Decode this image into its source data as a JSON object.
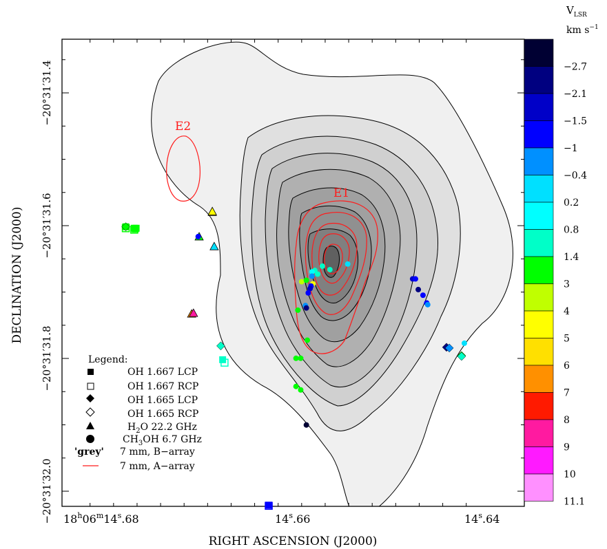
{
  "chart_data": {
    "type": "scatter",
    "xlabel": "RIGHT ASCENSION (J2000)",
    "ylabel": "DECLINATION (J2000)",
    "x_ticks": [
      {
        "h": "18",
        "m": "06",
        "s": "14.68",
        "label": "18h06m14s.68"
      },
      {
        "s": "14.66",
        "label": "14s.66"
      },
      {
        "s": "14.64",
        "label": "14s.64"
      }
    ],
    "y_ticks": [
      {
        "value": "−20°31′31.4",
        "deg": "−20",
        "min": "31",
        "sec": "31",
        "frac": "4"
      },
      {
        "value": "−20°31′31.6",
        "deg": "−20",
        "min": "31",
        "sec": "31",
        "frac": "6"
      },
      {
        "value": "−20°31′31.8",
        "deg": "−20",
        "min": "31",
        "sec": "31",
        "frac": "8"
      },
      {
        "value": "−20°31′32.0",
        "deg": "−20",
        "min": "31",
        "sec": "32",
        "frac": "0"
      }
    ],
    "colorbar": {
      "title_main": "V",
      "title_sub": "LSR",
      "unit_main": "km s",
      "unit_sup": "−1",
      "labels": [
        "−2.7",
        "−2.1",
        "−1.5",
        "−1",
        "−0.4",
        "0.2",
        "0.8",
        "1.4",
        "3",
        "4",
        "5",
        "6",
        "7",
        "8",
        "9",
        "10",
        "11.1"
      ],
      "colors": [
        "#000033",
        "#000080",
        "#0000c8",
        "#0000ff",
        "#0090ff",
        "#00e0ff",
        "#00ffff",
        "#00ffc8",
        "#00ff00",
        "#c0ff00",
        "#ffff00",
        "#ffe000",
        "#ff9000",
        "#ff1a00",
        "#ff1aa0",
        "#ff1aff",
        "#ff90ff"
      ]
    },
    "region_labels": [
      "E1",
      "E2"
    ],
    "legend": {
      "title": "Legend:",
      "entries": [
        {
          "symbol": "filled-square",
          "text": "OH 1.667 LCP"
        },
        {
          "symbol": "open-square",
          "text": "OH 1.667 RCP"
        },
        {
          "symbol": "filled-diamond",
          "text": "OH 1.665 LCP"
        },
        {
          "symbol": "open-diamond",
          "text": "OH 1.665 RCP"
        },
        {
          "symbol": "triangle",
          "text_main": "H",
          "text_sub": "2",
          "text_rest": "O 22.2 GHz"
        },
        {
          "symbol": "circle",
          "text_main": "CH",
          "text_sub": "3",
          "text_rest": "OH 6.7 GHz"
        },
        {
          "symbol": "grey",
          "grey_label": "'grey'",
          "text": "7 mm, B−array"
        },
        {
          "symbol": "red-line",
          "text": "7 mm, A−array"
        }
      ]
    },
    "masers": [
      {
        "sp": "sq",
        "x": 14.6782,
        "y": -31.6017,
        "c": "#00ff00"
      },
      {
        "sp": "osq",
        "x": 14.6782,
        "y": -31.6039,
        "c": "#00ff00"
      },
      {
        "sp": "sq",
        "x": 14.6773,
        "y": -31.6039,
        "c": "#00ff00"
      },
      {
        "sp": "sq",
        "x": 14.6772,
        "y": -31.605,
        "c": "#00ff00"
      },
      {
        "sp": "osq",
        "x": 14.6773,
        "y": -31.6061,
        "c": "#00ff00"
      },
      {
        "sp": "sq",
        "x": 14.6771,
        "y": -31.6039,
        "c": "#00ff00"
      },
      {
        "sp": "dia",
        "x": 14.6782,
        "y": -31.6017,
        "c": "#00ff00"
      },
      {
        "sp": "tri",
        "x": 14.6704,
        "y": -31.6165,
        "c": "#00ff00"
      },
      {
        "sp": "circ",
        "x": 14.6705,
        "y": -31.6165,
        "c": "#0000ff"
      },
      {
        "sp": "tri",
        "x": 14.669,
        "y": -31.5796,
        "c": "#ffe000"
      },
      {
        "sp": "tri",
        "x": 14.669,
        "y": -31.5785,
        "c": "#ffff00"
      },
      {
        "sp": "tri",
        "x": 14.6688,
        "y": -31.6313,
        "c": "#00e0ff"
      },
      {
        "sp": "tri",
        "x": 14.6712,
        "y": -31.7328,
        "c": "#ff9000"
      },
      {
        "sp": "tri",
        "x": 14.671,
        "y": -31.7317,
        "c": "#ff1aa0"
      },
      {
        "sp": "dia",
        "x": 14.6681,
        "y": -31.7811,
        "c": "#00ffc8"
      },
      {
        "sp": "sq",
        "x": 14.6679,
        "y": -31.8019,
        "c": "#00ffc8"
      },
      {
        "sp": "osq",
        "x": 14.6677,
        "y": -31.8064,
        "c": "#00ffc8"
      },
      {
        "sp": "sq",
        "x": 14.663,
        "y": -32.021,
        "c": "#0000ff"
      },
      {
        "sp": "osq",
        "x": 14.663,
        "y": -32.022,
        "c": "#0000ff"
      },
      {
        "sp": "dia",
        "x": 14.6441,
        "y": -31.7832,
        "c": "#000080"
      },
      {
        "sp": "dia",
        "x": 14.6438,
        "y": -31.7843,
        "c": "#0090ff"
      },
      {
        "sp": "dia",
        "x": 14.6425,
        "y": -31.7957,
        "c": "#00ff00"
      },
      {
        "sp": "dia",
        "x": 14.6425,
        "y": -31.7969,
        "c": "#00ffc8"
      },
      {
        "sp": "circ",
        "x": 14.6422,
        "y": -31.7771,
        "c": "#00e0ff"
      },
      {
        "sp": "circ",
        "x": 14.6477,
        "y": -31.6802,
        "c": "#0000c8"
      },
      {
        "sp": "circ",
        "x": 14.6474,
        "y": -31.6802,
        "c": "#0000ff"
      },
      {
        "sp": "circ",
        "x": 14.6471,
        "y": -31.6963,
        "c": "#000080"
      },
      {
        "sp": "circ",
        "x": 14.6466,
        "y": -31.7048,
        "c": "#0000ff"
      },
      {
        "sp": "circ",
        "x": 14.6462,
        "y": -31.7165,
        "c": "#0000ff"
      },
      {
        "sp": "circ",
        "x": 14.6461,
        "y": -31.719,
        "c": "#0090ff"
      },
      {
        "sp": "circ",
        "x": 14.6546,
        "y": -31.6578,
        "c": "#00e0ff"
      },
      {
        "sp": "circ",
        "x": 14.6573,
        "y": -31.661,
        "c": "#00ffc8"
      },
      {
        "sp": "circ",
        "x": 14.6565,
        "y": -31.6663,
        "c": "#00ffc8"
      },
      {
        "sp": "circ",
        "x": 14.6581,
        "y": -31.6674,
        "c": "#00ffc8"
      },
      {
        "sp": "circ",
        "x": 14.6584,
        "y": -31.6695,
        "c": "#00ffff"
      },
      {
        "sp": "circ",
        "x": 14.6578,
        "y": -31.673,
        "c": "#00ffc8"
      },
      {
        "sp": "circ",
        "x": 14.6584,
        "y": -31.6761,
        "c": "#0090ff"
      },
      {
        "sp": "circ",
        "x": 14.6595,
        "y": -31.6844,
        "c": "#c0ff00"
      },
      {
        "sp": "circ",
        "x": 14.659,
        "y": -31.6823,
        "c": "#00ff00"
      },
      {
        "sp": "circ",
        "x": 14.6583,
        "y": -31.6875,
        "c": "#ffff00"
      },
      {
        "sp": "circ",
        "x": 14.6585,
        "y": -31.6909,
        "c": "#0000ff"
      },
      {
        "sp": "circ",
        "x": 14.6586,
        "y": -31.6947,
        "c": "#0000c8"
      },
      {
        "sp": "circ",
        "x": 14.6588,
        "y": -31.7013,
        "c": "#0000ff"
      },
      {
        "sp": "circ",
        "x": 14.6591,
        "y": -31.7204,
        "c": "#0090ff"
      },
      {
        "sp": "circ",
        "x": 14.659,
        "y": -31.724,
        "c": "#000080"
      },
      {
        "sp": "circ",
        "x": 14.6599,
        "y": -31.7273,
        "c": "#00ff00"
      },
      {
        "sp": "circ",
        "x": 14.6589,
        "y": -31.7725,
        "c": "#00ff00"
      },
      {
        "sp": "circ",
        "x": 14.6601,
        "y": -31.7998,
        "c": "#00ff00"
      },
      {
        "sp": "circ",
        "x": 14.6596,
        "y": -31.7998,
        "c": "#00ff00"
      },
      {
        "sp": "circ",
        "x": 14.6601,
        "y": -31.8422,
        "c": "#00ff00"
      },
      {
        "sp": "circ",
        "x": 14.6596,
        "y": -31.8474,
        "c": "#00ff00"
      },
      {
        "sp": "circ",
        "x": 14.659,
        "y": -31.9002,
        "c": "#000033"
      }
    ]
  }
}
